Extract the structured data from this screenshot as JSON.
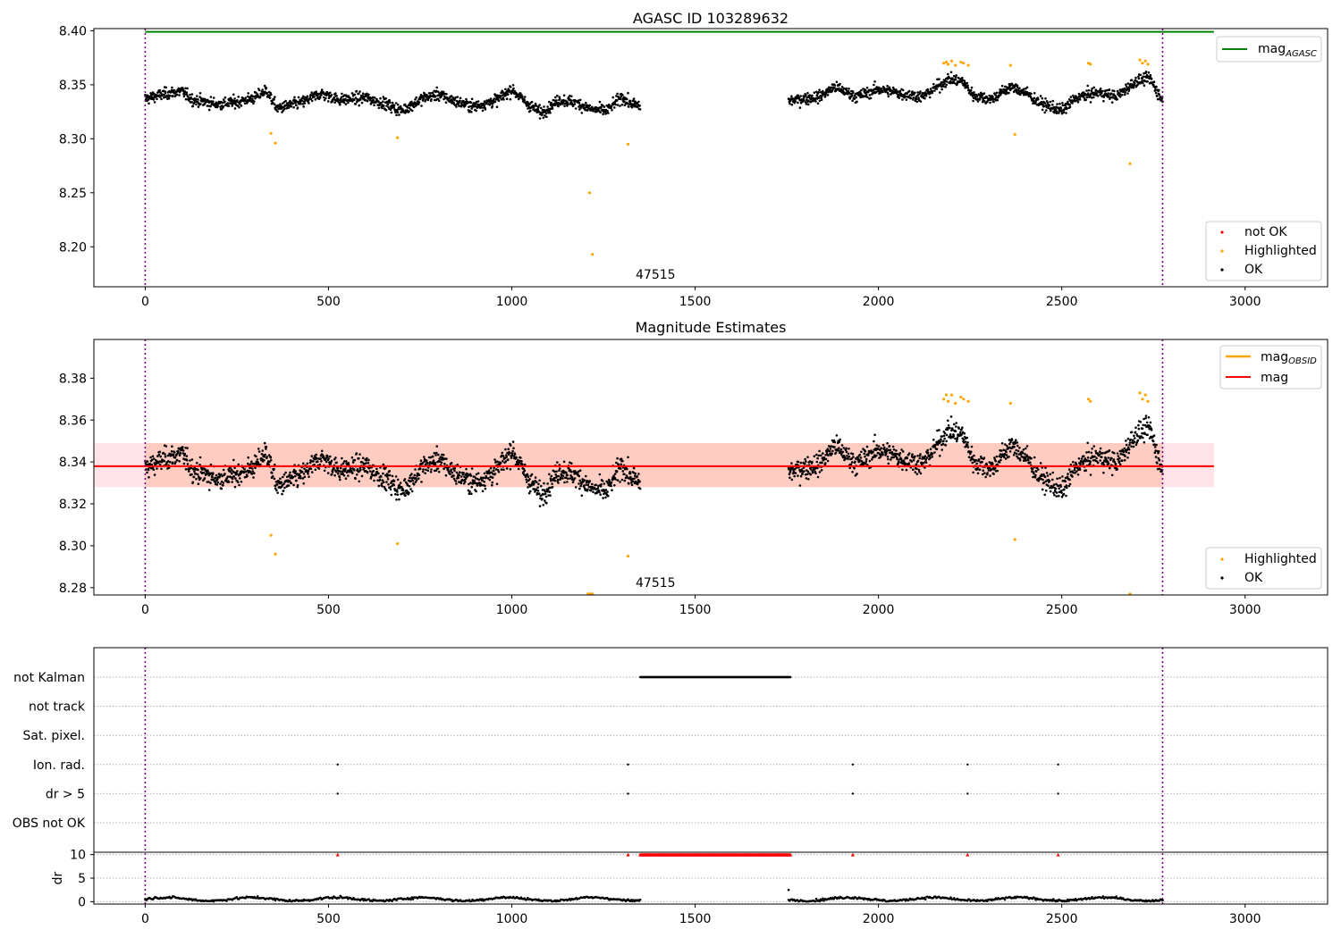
{
  "chart_data": [
    {
      "type": "scatter",
      "title": "AGASC ID 103289632",
      "xlim": [
        -140,
        3225
      ],
      "ylim": [
        8.163,
        8.402
      ],
      "xticks": [
        0,
        500,
        1000,
        1500,
        2000,
        2500,
        3000
      ],
      "xtick_labels": [
        "0",
        "500",
        "1000",
        "1500",
        "2000",
        "2500",
        "3000"
      ],
      "yticks": [
        8.2,
        8.25,
        8.3,
        8.35,
        8.4
      ],
      "ytick_labels": [
        "8.20",
        "8.25",
        "8.30",
        "8.35",
        "8.40"
      ],
      "grid": false,
      "obs_boundaries": [
        0,
        2775
      ],
      "obsid_label": {
        "text": "47515",
        "x": 1350,
        "y": 8.17
      },
      "hlines": [
        {
          "name": "mag_AGASC",
          "y": 8.399,
          "x_range": [
            0,
            2915
          ],
          "color": "#008000"
        }
      ],
      "legend_lines": {
        "position": "top-right",
        "entries": [
          {
            "label": "mag",
            "sub": "AGASC",
            "color": "#008000"
          }
        ]
      },
      "legend_points": {
        "position": "bottom-right",
        "entries": [
          {
            "label": "not OK",
            "color": "#ff0000"
          },
          {
            "label": "Highlighted",
            "color": "#ffa500"
          },
          {
            "label": "OK",
            "color": "#000000"
          }
        ]
      },
      "ok_segments": [
        {
          "x_range": [
            0,
            1350
          ],
          "n": 1350,
          "knots": [
            [
              0,
              8.337
            ],
            [
              60,
              8.342
            ],
            [
              100,
              8.344
            ],
            [
              130,
              8.336
            ],
            [
              200,
              8.332
            ],
            [
              250,
              8.334
            ],
            [
              300,
              8.338
            ],
            [
              330,
              8.345
            ],
            [
              360,
              8.328
            ],
            [
              430,
              8.334
            ],
            [
              480,
              8.342
            ],
            [
              530,
              8.336
            ],
            [
              600,
              8.338
            ],
            [
              650,
              8.333
            ],
            [
              700,
              8.326
            ],
            [
              760,
              8.338
            ],
            [
              800,
              8.341
            ],
            [
              850,
              8.334
            ],
            [
              900,
              8.33
            ],
            [
              960,
              8.336
            ],
            [
              1000,
              8.346
            ],
            [
              1040,
              8.333
            ],
            [
              1080,
              8.324
            ],
            [
              1130,
              8.336
            ],
            [
              1170,
              8.334
            ],
            [
              1220,
              8.327
            ],
            [
              1260,
              8.326
            ],
            [
              1300,
              8.339
            ],
            [
              1320,
              8.333
            ],
            [
              1350,
              8.33
            ]
          ],
          "scatter": 0.005
        },
        {
          "x_range": [
            1755,
            2775
          ],
          "n": 1020,
          "knots": [
            [
              1755,
              8.335
            ],
            [
              1790,
              8.337
            ],
            [
              1840,
              8.339
            ],
            [
              1880,
              8.348
            ],
            [
              1940,
              8.339
            ],
            [
              2000,
              8.346
            ],
            [
              2060,
              8.342
            ],
            [
              2120,
              8.339
            ],
            [
              2190,
              8.355
            ],
            [
              2230,
              8.353
            ],
            [
              2260,
              8.34
            ],
            [
              2310,
              8.337
            ],
            [
              2360,
              8.348
            ],
            [
              2400,
              8.343
            ],
            [
              2440,
              8.333
            ],
            [
              2500,
              8.326
            ],
            [
              2540,
              8.338
            ],
            [
              2600,
              8.343
            ],
            [
              2650,
              8.339
            ],
            [
              2700,
              8.353
            ],
            [
              2740,
              8.356
            ],
            [
              2775,
              8.335
            ]
          ],
          "scatter": 0.005
        }
      ],
      "highlighted": [
        [
          343,
          8.305
        ],
        [
          355,
          8.296
        ],
        [
          688,
          8.301
        ],
        [
          1212,
          8.25
        ],
        [
          1220,
          8.193
        ],
        [
          1317,
          8.295
        ],
        [
          2178,
          8.37
        ],
        [
          2185,
          8.371
        ],
        [
          2190,
          8.369
        ],
        [
          2200,
          8.372
        ],
        [
          2210,
          8.368
        ],
        [
          2225,
          8.371
        ],
        [
          2232,
          8.37
        ],
        [
          2245,
          8.368
        ],
        [
          2360,
          8.368
        ],
        [
          2372,
          8.304
        ],
        [
          2573,
          8.37
        ],
        [
          2578,
          8.369
        ],
        [
          2686,
          8.277
        ],
        [
          2713,
          8.373
        ],
        [
          2720,
          8.37
        ],
        [
          2728,
          8.372
        ],
        [
          2735,
          8.369
        ]
      ]
    },
    {
      "type": "scatter",
      "title": "Magnitude Estimates",
      "xlim": [
        -140,
        3225
      ],
      "ylim": [
        8.2765,
        8.3985
      ],
      "xticks": [
        0,
        500,
        1000,
        1500,
        2000,
        2500,
        3000
      ],
      "xtick_labels": [
        "0",
        "500",
        "1000",
        "1500",
        "2000",
        "2500",
        "3000"
      ],
      "yticks": [
        8.28,
        8.3,
        8.32,
        8.34,
        8.36,
        8.38
      ],
      "ytick_labels": [
        "8.28",
        "8.30",
        "8.32",
        "8.34",
        "8.36",
        "8.38"
      ],
      "grid": false,
      "obs_boundaries": [
        0,
        2775
      ],
      "obsid_label": {
        "text": "47515",
        "x": 1350,
        "y": 8.2785
      },
      "mag": 8.338,
      "mag_band": [
        8.328,
        8.349
      ],
      "mag_band_x_range": [
        -140,
        2915
      ],
      "obsid_band": {
        "x_range": [
          0,
          2775
        ],
        "y_range": [
          8.328,
          8.349
        ],
        "color": "#ffa07a"
      },
      "legend_lines": {
        "position": "top-right",
        "entries": [
          {
            "label": "mag",
            "sub": "OBSID",
            "color": "#ffa500"
          },
          {
            "label": "mag",
            "sub": "",
            "color": "#ff0000"
          }
        ]
      },
      "legend_points": {
        "position": "bottom-right",
        "entries": [
          {
            "label": "Highlighted",
            "color": "#ffa500"
          },
          {
            "label": "OK",
            "color": "#000000"
          }
        ]
      },
      "highlighted": [
        [
          343,
          8.305
        ],
        [
          355,
          8.296
        ],
        [
          688,
          8.301
        ],
        [
          1208,
          8.277
        ],
        [
          1214,
          8.277
        ],
        [
          1220,
          8.277
        ],
        [
          1317,
          8.295
        ],
        [
          2178,
          8.37
        ],
        [
          2185,
          8.372
        ],
        [
          2190,
          8.369
        ],
        [
          2200,
          8.372
        ],
        [
          2210,
          8.368
        ],
        [
          2225,
          8.371
        ],
        [
          2232,
          8.37
        ],
        [
          2245,
          8.369
        ],
        [
          2360,
          8.368
        ],
        [
          2372,
          8.303
        ],
        [
          2573,
          8.37
        ],
        [
          2578,
          8.369
        ],
        [
          2686,
          8.277
        ],
        [
          2713,
          8.373
        ],
        [
          2720,
          8.37
        ],
        [
          2728,
          8.372
        ],
        [
          2735,
          8.369
        ]
      ]
    },
    {
      "type": "scatter",
      "title": "",
      "xlim": [
        -140,
        3225
      ],
      "xticks": [
        0,
        500,
        1000,
        1500,
        2000,
        2500,
        3000
      ],
      "xtick_labels": [
        "0",
        "500",
        "1000",
        "1500",
        "2000",
        "2500",
        "3000"
      ],
      "obs_boundaries": [
        0,
        2775
      ],
      "flags": [
        "not Kalman",
        "not track",
        "Sat. pixel.",
        "Ion. rad.",
        "dr > 5",
        "OBS not OK"
      ],
      "flag_points": {
        "not Kalman": {
          "x_range": [
            1350,
            1760
          ],
          "n": 400
        },
        "Ion. rad.": {
          "x": [
            525,
            1317,
            1930,
            2243,
            2490
          ]
        },
        "dr > 5": {
          "x": [
            525,
            1317,
            1930,
            2243,
            2490
          ]
        }
      },
      "dr_panel": {
        "ylabel": "dr",
        "ylim": [
          -0.5,
          10.5
        ],
        "yticks": [
          0,
          5,
          10
        ],
        "ytick_labels": [
          "0",
          "5",
          "10"
        ],
        "clipped_value": 10,
        "clipped_x": [
          525,
          1317,
          1930,
          2243,
          2490
        ],
        "clipped_x_range": [
          1350,
          1760
        ],
        "extra_point": [
          1755,
          2.5
        ]
      }
    }
  ]
}
